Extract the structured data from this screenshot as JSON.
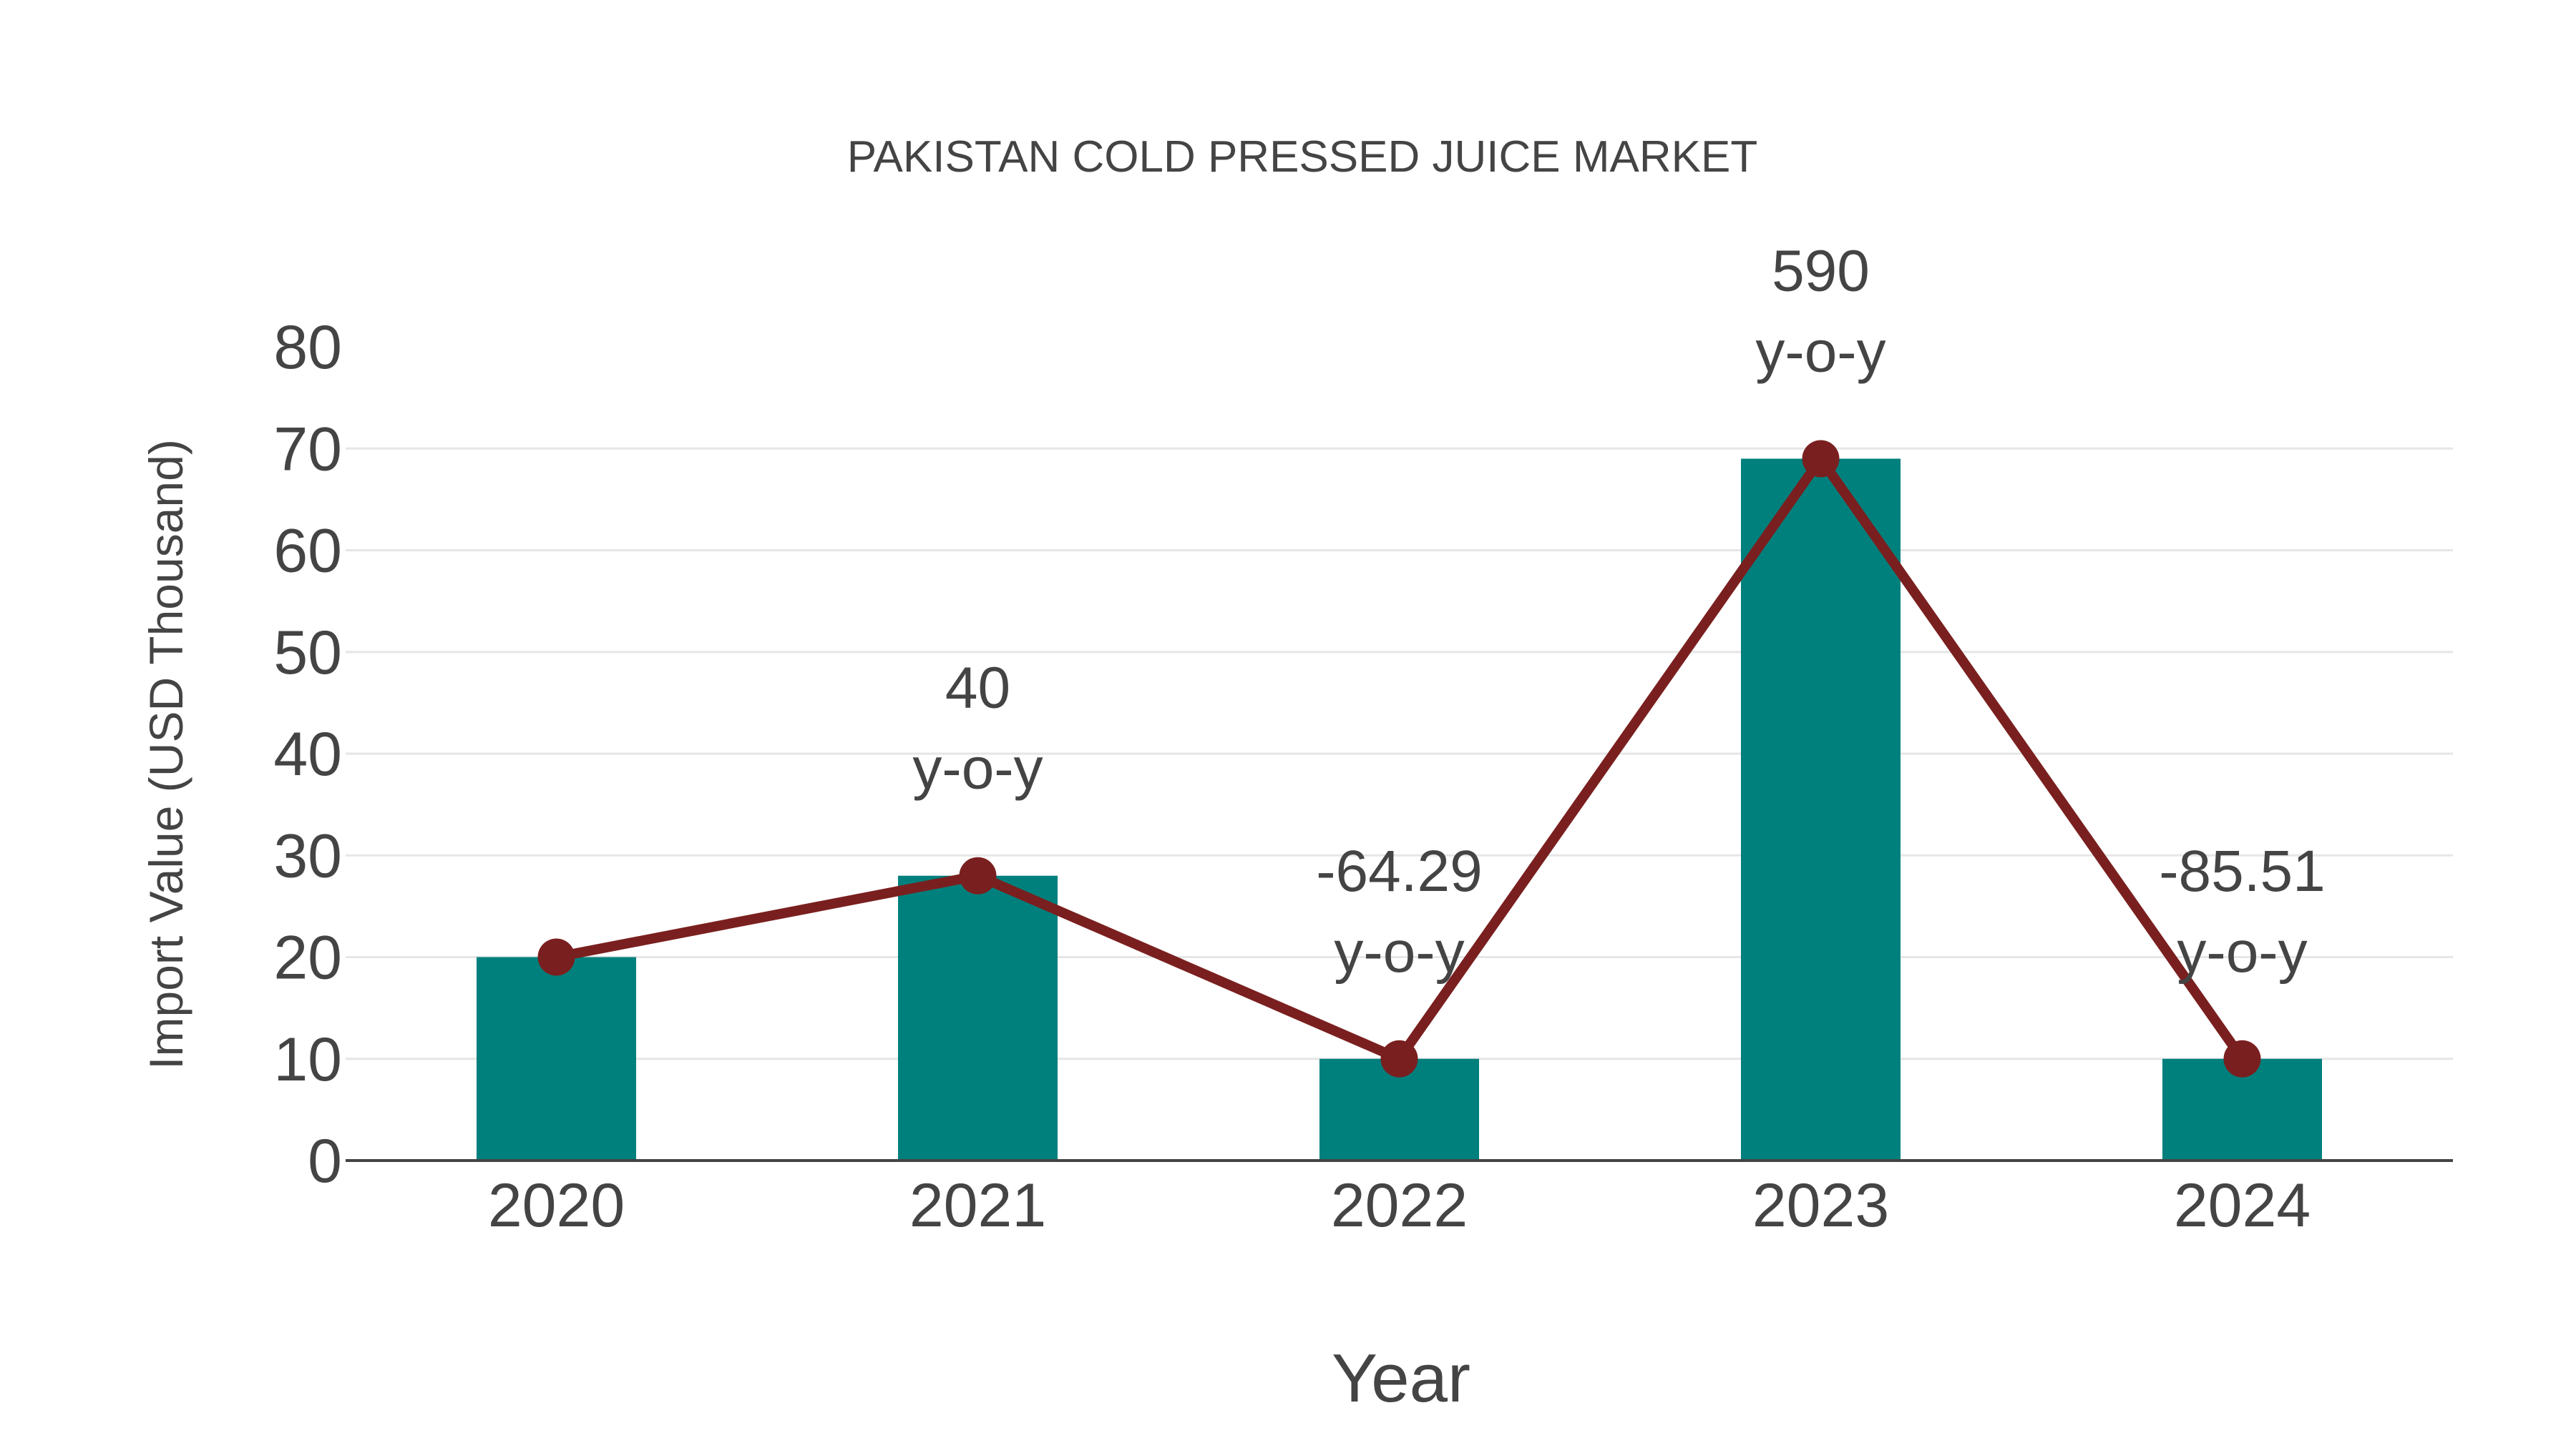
{
  "chart_data": {
    "type": "bar",
    "title": "PAKISTAN COLD PRESSED JUICE MARKET",
    "xlabel": "Year",
    "ylabel": "Import Value (USD Thousand)",
    "categories": [
      "2020",
      "2021",
      "2022",
      "2023",
      "2024"
    ],
    "series": [
      {
        "name": "Import Value",
        "type": "bar",
        "color": "#00807d",
        "values": [
          20,
          28,
          10,
          69,
          10
        ]
      },
      {
        "name": "Import Value trend",
        "type": "line",
        "color": "#7a1f1f",
        "values": [
          20,
          28,
          10,
          69,
          10
        ]
      }
    ],
    "annotations": [
      {
        "category": "2021",
        "value": "40",
        "suffix": "y-o-y"
      },
      {
        "category": "2022",
        "value": "-64.29",
        "suffix": "y-o-y"
      },
      {
        "category": "2023",
        "value": "590",
        "suffix": "y-o-y"
      },
      {
        "category": "2024",
        "value": "-85.51",
        "suffix": "y-o-y"
      }
    ],
    "ylim": [
      0,
      80
    ],
    "yticks": [
      0,
      10,
      20,
      30,
      40,
      50,
      60,
      70,
      80
    ],
    "grid": true,
    "legend": "none"
  },
  "colors": {
    "bar": "#00807d",
    "line": "#7a1f1f",
    "text": "#444444",
    "grid": "#e6e6e6"
  }
}
